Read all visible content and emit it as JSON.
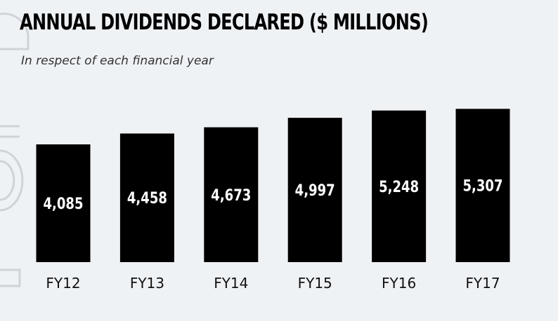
{
  "chart_data": {
    "type": "bar",
    "title": "ANNUAL DIVIDENDS DECLARED ($ MILLIONS)",
    "subtitle": "In respect of each financial year",
    "categories": [
      "FY12",
      "FY13",
      "FY14",
      "FY15",
      "FY16",
      "FY17"
    ],
    "values": [
      4085,
      4458,
      4673,
      4997,
      5248,
      5307
    ],
    "value_labels": [
      "4,085",
      "4,458",
      "4,673",
      "4,997",
      "5,248",
      "5,307"
    ],
    "xlabel": "",
    "ylabel": "",
    "grid": false,
    "bar_color": "#000000",
    "label_color": "#ffffff"
  },
  "colors": {
    "background": "#eff2f5",
    "bar": "#000000",
    "watermark": "#cfd3d7"
  }
}
